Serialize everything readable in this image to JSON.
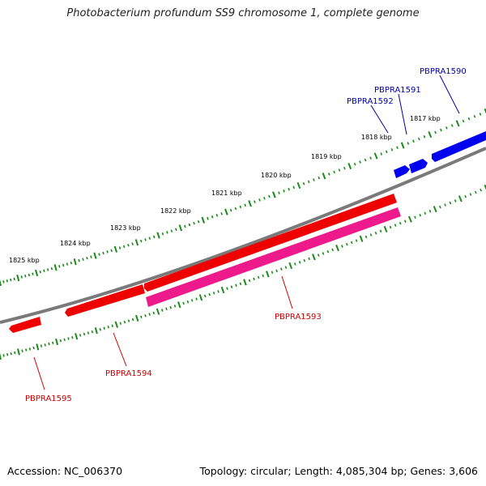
{
  "title": "Photobacterium profundum SS9 chromosome 1, complete genome",
  "footer": {
    "accession": "Accession: NC_006370",
    "summary": "Topology: circular; Length: 4,085,304 bp; Genes: 3,606"
  },
  "colors": {
    "backbone": "#7a7a7a",
    "tick": "#1a8a1a",
    "forward_gene": "#0000ee",
    "reverse_gene": "#ee0000",
    "highlight_gene": "#ee1a8c",
    "forward_label": "#0000aa",
    "reverse_label": "#cc0000"
  },
  "scale_labels": [
    "1817 kbp",
    "1818 kbp",
    "1819 kbp",
    "1820 kbp",
    "1821 kbp",
    "1822 kbp",
    "1823 kbp",
    "1824 kbp",
    "1825 kbp"
  ],
  "genes": [
    {
      "id": "PBPRA1590",
      "strand": "forward",
      "color_key": "forward_gene"
    },
    {
      "id": "PBPRA1591",
      "strand": "forward",
      "color_key": "forward_gene"
    },
    {
      "id": "PBPRA1592",
      "strand": "forward",
      "color_key": "forward_gene"
    },
    {
      "id": "PBPRA1593",
      "strand": "reverse",
      "color_key": "highlight_gene"
    },
    {
      "id": "PBPRA1594",
      "strand": "reverse",
      "color_key": "reverse_gene"
    },
    {
      "id": "PBPRA1595",
      "strand": "reverse",
      "color_key": "reverse_gene"
    }
  ]
}
